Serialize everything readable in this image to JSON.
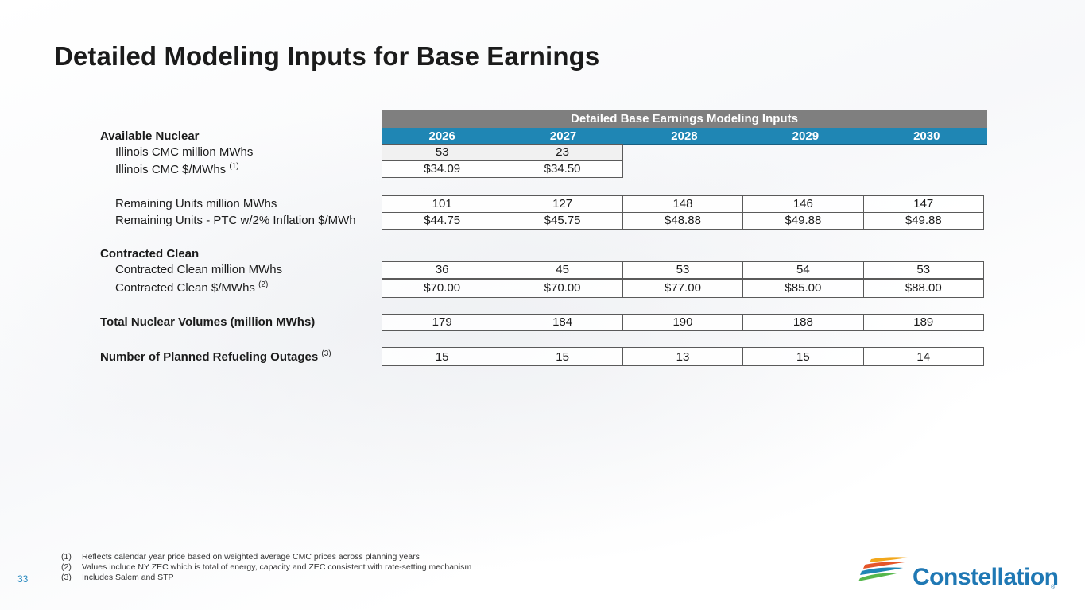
{
  "title": "Detailed Modeling Inputs for Base Earnings",
  "table": {
    "banner": "Detailed Base Earnings Modeling Inputs",
    "years": [
      "2026",
      "2027",
      "2028",
      "2029",
      "2030"
    ],
    "rows": [
      {
        "label": "Available Nuclear",
        "type": "section",
        "values": []
      },
      {
        "label": "Illinois CMC million MWhs",
        "type": "data",
        "values": [
          "53",
          "23"
        ]
      },
      {
        "label": "Illinois CMC $/MWhs",
        "footnote": "(1)",
        "type": "data",
        "values": [
          "$34.09",
          "$34.50"
        ]
      },
      {
        "label": "Remaining Units million MWhs",
        "type": "data",
        "values": [
          "101",
          "127",
          "148",
          "146",
          "147"
        ]
      },
      {
        "label": "Remaining Units - PTC w/2% Inflation $/MWh",
        "type": "data",
        "values": [
          "$44.75",
          "$45.75",
          "$48.88",
          "$49.88",
          "$49.88"
        ]
      },
      {
        "label": "Contracted Clean",
        "type": "section",
        "values": []
      },
      {
        "label": "Contracted Clean million MWhs",
        "type": "data",
        "values": [
          "36",
          "45",
          "53",
          "54",
          "53"
        ]
      },
      {
        "label": "Contracted Clean $/MWhs",
        "footnote": "(2)",
        "type": "data",
        "values": [
          "$70.00",
          "$70.00",
          "$77.00",
          "$85.00",
          "$88.00"
        ]
      },
      {
        "label": "Total Nuclear Volumes (million MWhs)",
        "type": "total",
        "values": [
          "179",
          "184",
          "190",
          "188",
          "189"
        ]
      },
      {
        "label": "Number of Planned Refueling Outages",
        "footnote": "(3)",
        "type": "total",
        "values": [
          "15",
          "15",
          "13",
          "15",
          "14"
        ]
      }
    ]
  },
  "footnotes": [
    {
      "num": "(1)",
      "text": "Reflects calendar year price based on weighted average CMC prices across planning years"
    },
    {
      "num": "(2)",
      "text": "Values include NY ZEC which is total of energy, capacity and ZEC consistent with rate-setting mechanism"
    },
    {
      "num": "(3)",
      "text": "Includes Salem and STP"
    }
  ],
  "page_number": "33",
  "logo": {
    "text": "Constellation",
    "registered": "®",
    "colors": [
      "#f2a71b",
      "#e4562a",
      "#1f86b4",
      "#1f78b4",
      "#56b74c"
    ]
  }
}
